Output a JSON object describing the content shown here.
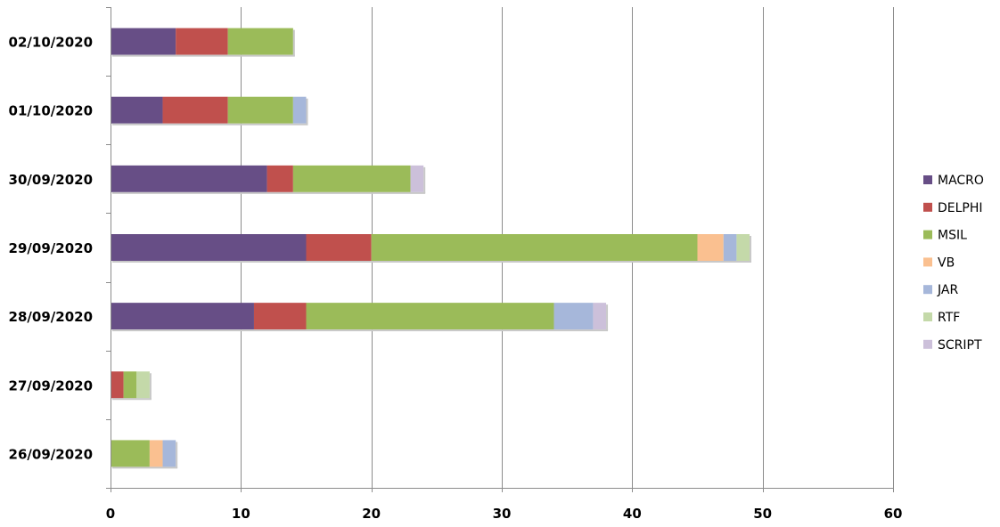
{
  "chart_data": {
    "type": "bar",
    "orientation": "horizontal",
    "stacked": true,
    "title": "",
    "xlabel": "",
    "ylabel": "",
    "categories": [
      "02/10/2020",
      "01/10/2020",
      "30/09/2020",
      "29/09/2020",
      "28/09/2020",
      "27/09/2020",
      "26/09/2020"
    ],
    "series": [
      {
        "name": "MACRO",
        "color": "#674E86",
        "values": [
          5,
          4,
          12,
          15,
          11,
          0,
          0
        ]
      },
      {
        "name": "DELPHI",
        "color": "#C0504D",
        "values": [
          4,
          5,
          2,
          5,
          4,
          1,
          0
        ]
      },
      {
        "name": "MSIL",
        "color": "#9BBB59",
        "values": [
          5,
          5,
          9,
          25,
          19,
          1,
          3
        ]
      },
      {
        "name": "VB",
        "color": "#FAC090",
        "values": [
          0,
          0,
          0,
          2,
          0,
          0,
          1
        ]
      },
      {
        "name": "JAR",
        "color": "#A6B7DA",
        "values": [
          0,
          1,
          0,
          1,
          3,
          0,
          1
        ]
      },
      {
        "name": "RTF",
        "color": "#C4D9A9",
        "values": [
          0,
          0,
          0,
          1,
          0,
          1,
          0
        ]
      },
      {
        "name": "SCRIPT",
        "color": "#CCC0DA",
        "values": [
          0,
          0,
          1,
          0,
          1,
          0,
          0
        ]
      }
    ],
    "xlim": [
      0,
      60
    ],
    "xticks": [
      0,
      10,
      20,
      30,
      40,
      50,
      60
    ],
    "xtick_labels": [
      "0",
      "10",
      "20",
      "30",
      "40",
      "50",
      "60"
    ],
    "grid": "vertical",
    "legend": "right"
  }
}
